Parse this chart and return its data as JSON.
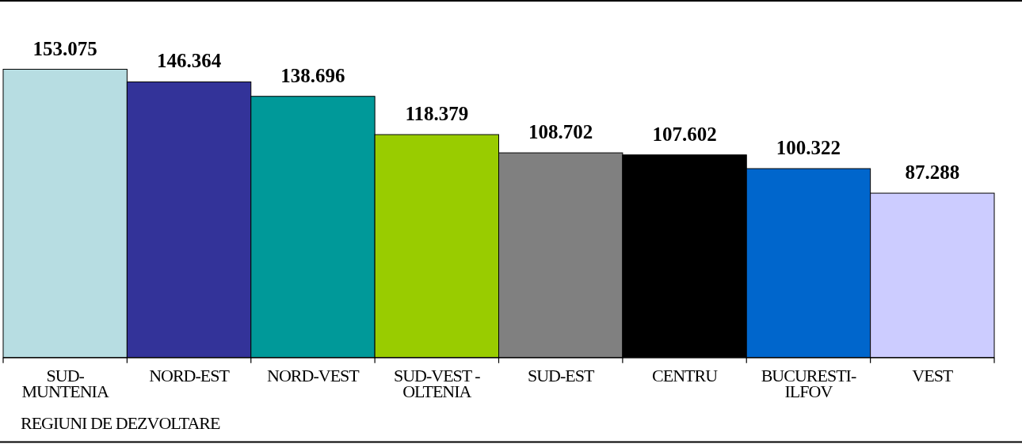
{
  "chart_data": {
    "type": "bar",
    "xlabel": "REGIUNI DE DEZVOLTARE",
    "categories": [
      "SUD-MUNTENIA",
      "NORD-EST",
      "NORD-VEST",
      "SUD-VEST - OLTENIA",
      "SUD-EST",
      "CENTRU",
      "BUCURESTI-ILFOV",
      "VEST"
    ],
    "values": [
      153.075,
      146.364,
      138.696,
      118.379,
      108.702,
      107.602,
      100.322,
      87.288
    ],
    "colors": [
      "#b7dde2",
      "#333399",
      "#009999",
      "#99cc00",
      "#808080",
      "#000000",
      "#0066cc",
      "#ccccff"
    ],
    "data_labels": true,
    "tick_labels": "x"
  }
}
